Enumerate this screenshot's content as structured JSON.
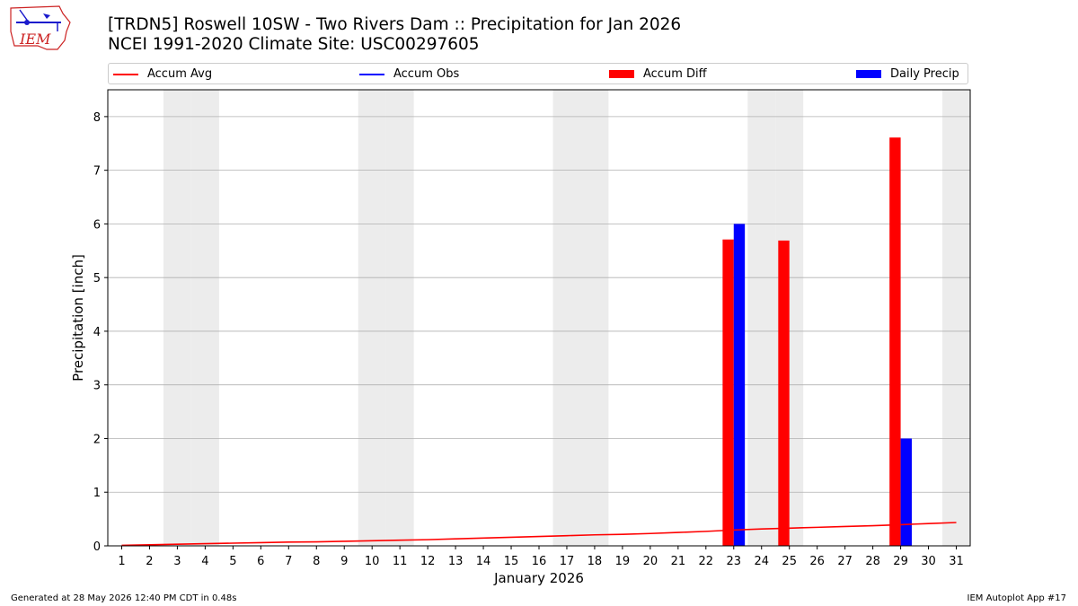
{
  "title_line1": "[TRDN5] Roswell 10SW - Two Rivers Dam :: Precipitation for Jan 2026",
  "title_line2": "NCEI 1991-2020 Climate Site: USC00297605",
  "logo_text": "IEM",
  "footer_left": "Generated at 28 May 2026 12:40 PM CDT in 0.48s",
  "footer_right": "IEM Autoplot App #17",
  "colors": {
    "avg": "#ff0000",
    "obs": "#0000ff",
    "diff": "#ff0000",
    "daily": "#0000ff",
    "weekend": "#ececec",
    "grid": "#b0b0b0"
  },
  "legend": [
    {
      "label": "Accum Avg",
      "kind": "line",
      "color": "#ff0000"
    },
    {
      "label": "Accum Obs",
      "kind": "line",
      "color": "#0000ff"
    },
    {
      "label": "Accum Diff",
      "kind": "patch",
      "color": "#ff0000"
    },
    {
      "label": "Daily Precip",
      "kind": "patch",
      "color": "#0000ff"
    }
  ],
  "chart_data": {
    "type": "bar",
    "xlabel": "January 2026",
    "ylabel": "Precipitation [inch]",
    "ylim": [
      0,
      8.5
    ],
    "yticks": [
      0,
      1,
      2,
      3,
      4,
      5,
      6,
      7,
      8
    ],
    "xlim": [
      0.5,
      31.5
    ],
    "days": [
      1,
      2,
      3,
      4,
      5,
      6,
      7,
      8,
      9,
      10,
      11,
      12,
      13,
      14,
      15,
      16,
      17,
      18,
      19,
      20,
      21,
      22,
      23,
      24,
      25,
      26,
      27,
      28,
      29,
      30,
      31
    ],
    "weekend_days": [
      3,
      4,
      10,
      11,
      17,
      18,
      24,
      25,
      31
    ],
    "grid": "horizontal",
    "series": [
      {
        "name": "Accum Avg",
        "kind": "line",
        "color": "#ff0000",
        "values": [
          0.01,
          0.02,
          0.03,
          0.04,
          0.05,
          0.06,
          0.07,
          0.075,
          0.085,
          0.095,
          0.105,
          0.115,
          0.13,
          0.145,
          0.16,
          0.175,
          0.19,
          0.205,
          0.215,
          0.23,
          0.25,
          0.27,
          0.295,
          0.315,
          0.33,
          0.345,
          0.36,
          0.375,
          0.395,
          0.415,
          0.435
        ]
      },
      {
        "name": "Accum Diff",
        "kind": "bar",
        "color": "#ff0000",
        "points": [
          {
            "x": 23,
            "y": 5.71
          },
          {
            "x": 25,
            "y": 5.69
          },
          {
            "x": 29,
            "y": 7.61
          }
        ]
      },
      {
        "name": "Daily Precip",
        "kind": "bar",
        "color": "#0000ff",
        "points": [
          {
            "x": 23,
            "y": 6.0
          },
          {
            "x": 29,
            "y": 2.0
          }
        ]
      }
    ]
  }
}
